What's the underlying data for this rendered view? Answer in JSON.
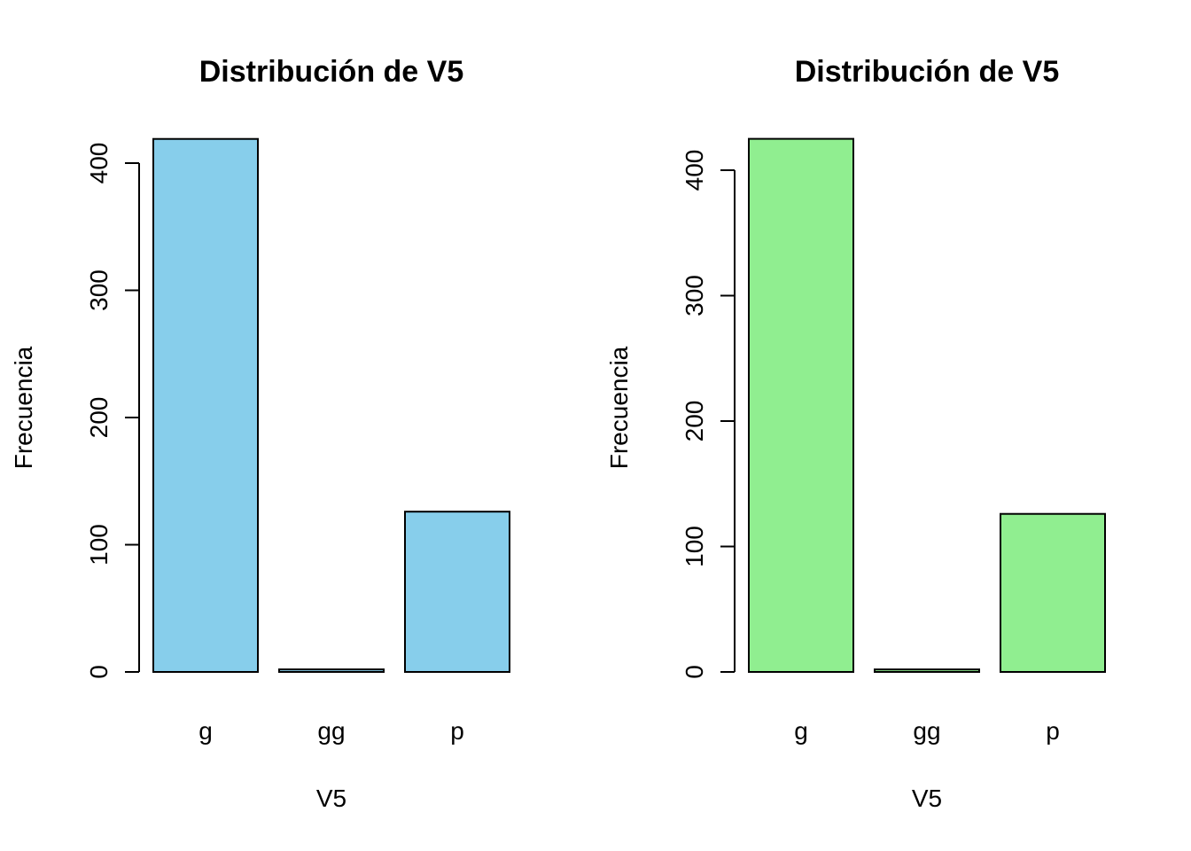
{
  "chart_data": [
    {
      "type": "bar",
      "title": "Distribución de V5",
      "xlabel": "V5",
      "ylabel": "Frecuencia",
      "categories": [
        "g",
        "gg",
        "p"
      ],
      "values": [
        419,
        2,
        126
      ],
      "ylim": [
        0,
        400
      ],
      "yticks": [
        "0",
        "100",
        "200",
        "300",
        "400"
      ],
      "bar_color": "#87CEEB",
      "grid": false
    },
    {
      "type": "bar",
      "title": "Distribución de V5",
      "xlabel": "V5",
      "ylabel": "Frecuencia",
      "categories": [
        "g",
        "gg",
        "p"
      ],
      "values": [
        425,
        2,
        126
      ],
      "ylim": [
        0,
        400
      ],
      "yticks": [
        "0",
        "100",
        "200",
        "300",
        "400"
      ],
      "bar_color": "#90EE90",
      "grid": false
    }
  ]
}
